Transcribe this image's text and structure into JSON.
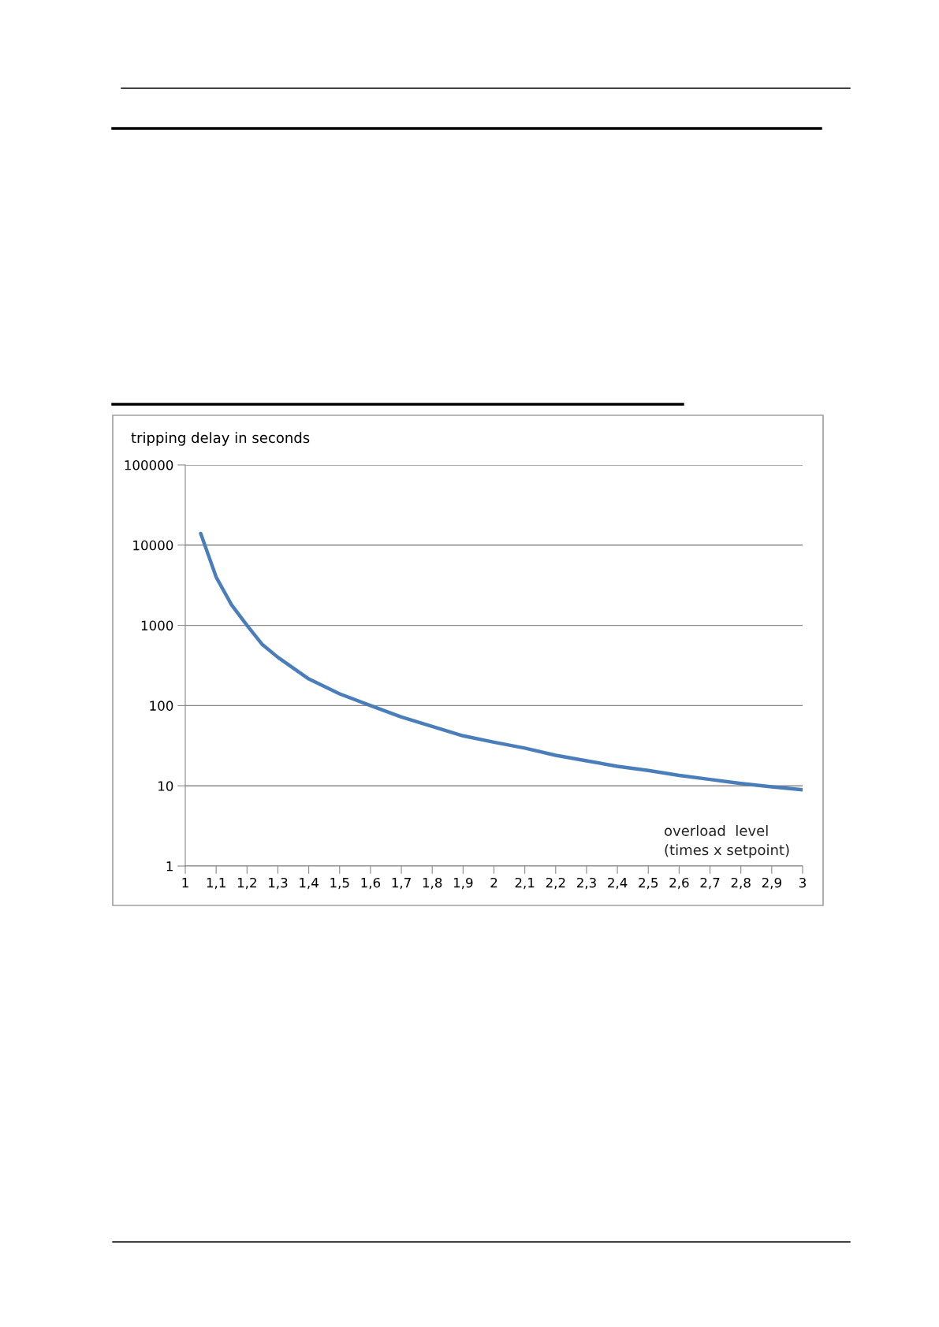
{
  "chart_data": {
    "type": "line",
    "ylabel": "tripping delay in seconds",
    "xlabel": "overload  level\n(times x setpoint)",
    "x": [
      1.05,
      1.1,
      1.15,
      1.2,
      1.25,
      1.3,
      1.4,
      1.5,
      1.6,
      1.7,
      1.8,
      1.9,
      2.0,
      2.1,
      2.2,
      2.3,
      2.4,
      2.5,
      2.6,
      2.7,
      2.8,
      2.9,
      3.0
    ],
    "series": [
      {
        "color": "#4a7ebb",
        "values": [
          14000,
          4000,
          1800,
          1000,
          575,
          400,
          215,
          140,
          100,
          72,
          55,
          42,
          35,
          29.5,
          24,
          20.5,
          17.5,
          15.5,
          13.5,
          12,
          10.7,
          9.7,
          8.9
        ]
      }
    ],
    "log": "y",
    "xlim": [
      1,
      3
    ],
    "ylim": [
      1,
      100000
    ],
    "xticks": [
      1,
      {
        "value": 1.1,
        "label": "1,1"
      },
      {
        "value": 1.2,
        "label": "1,2"
      },
      {
        "value": 1.3,
        "label": "1,3"
      },
      {
        "value": 1.4,
        "label": "1,4"
      },
      {
        "value": 1.5,
        "label": "1,5"
      },
      {
        "value": 1.6,
        "label": "1,6"
      },
      {
        "value": 1.7,
        "label": "1,7"
      },
      {
        "value": 1.8,
        "label": "1,8"
      },
      {
        "value": 1.9,
        "label": "1,9"
      },
      2,
      {
        "value": 2.1,
        "label": "2,1"
      },
      {
        "value": 2.2,
        "label": "2,2"
      },
      {
        "value": 2.3,
        "label": "2,3"
      },
      {
        "value": 2.4,
        "label": "2,4"
      },
      {
        "value": 2.5,
        "label": "2,5"
      },
      {
        "value": 2.6,
        "label": "2,6"
      },
      {
        "value": 2.7,
        "label": "2,7"
      },
      {
        "value": 2.8,
        "label": "2,8"
      },
      {
        "value": 2.9,
        "label": "2,9"
      },
      3
    ],
    "yticks": [
      1,
      10,
      100,
      1000,
      10000,
      100000
    ],
    "grid": "y",
    "marker": "none",
    "line_style": "solid"
  }
}
